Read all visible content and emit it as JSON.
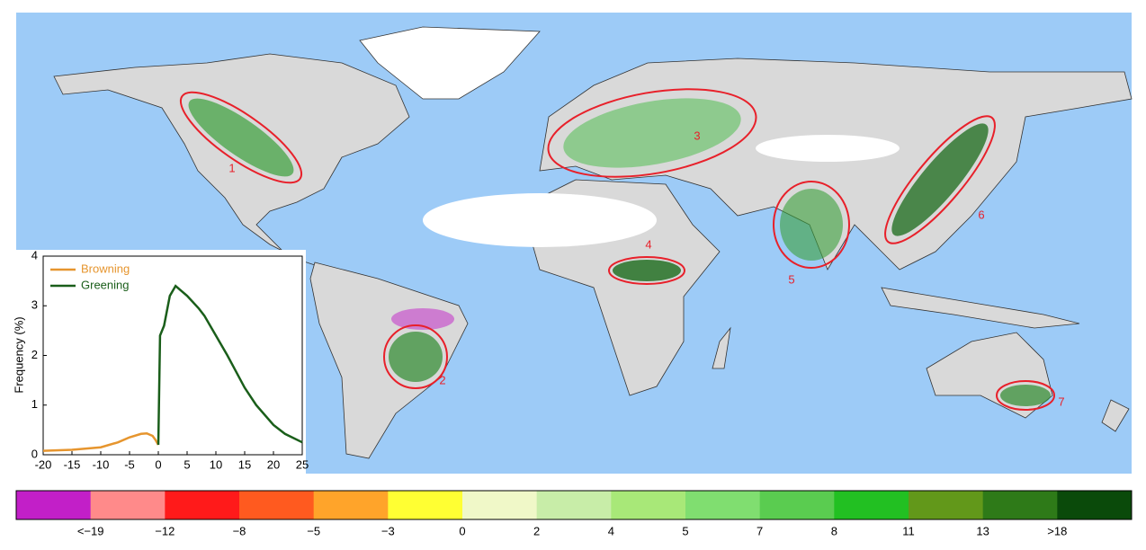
{
  "map": {
    "regions": [
      {
        "label": "1"
      },
      {
        "label": "2"
      },
      {
        "label": "3"
      },
      {
        "label": "4"
      },
      {
        "label": "5"
      },
      {
        "label": "6"
      },
      {
        "label": "7"
      }
    ]
  },
  "chart_data": {
    "type": "line",
    "ylabel": "Frequency (%)",
    "xlim": [
      -20,
      25
    ],
    "ylim": [
      0,
      4
    ],
    "xticks": [
      -20,
      -15,
      -10,
      -5,
      0,
      5,
      10,
      15,
      20,
      25
    ],
    "yticks": [
      0,
      1,
      2,
      3,
      4
    ],
    "legend": "upper left",
    "series": [
      {
        "name": "Browning",
        "color": "#e6952e",
        "x": [
          -20,
          -15,
          -10,
          -7,
          -5,
          -3,
          -2,
          -1,
          -0.5,
          0
        ],
        "values": [
          0.08,
          0.1,
          0.15,
          0.25,
          0.35,
          0.42,
          0.43,
          0.38,
          0.3,
          0.2
        ]
      },
      {
        "name": "Greening",
        "color": "#1a5e1a",
        "x": [
          0,
          0.3,
          1,
          2,
          3,
          4,
          5,
          7,
          8,
          10,
          12,
          15,
          17,
          20,
          22,
          25
        ],
        "values": [
          0.2,
          2.4,
          2.6,
          3.2,
          3.4,
          3.3,
          3.2,
          2.95,
          2.8,
          2.4,
          2.0,
          1.35,
          1.0,
          0.6,
          0.42,
          0.25
        ]
      }
    ]
  },
  "colorbar": {
    "colors": [
      "#c21fc8",
      "#ff8a8a",
      "#ff1a1a",
      "#ff5a1f",
      "#ffa42a",
      "#ffff33",
      "#f0f8c8",
      "#c8eda8",
      "#a8e878",
      "#80de70",
      "#5acc50",
      "#22c022",
      "#62981a",
      "#2e7a18",
      "#0a4a0a"
    ],
    "labels": [
      "<−19",
      "−12",
      "−8",
      "−5",
      "−3",
      "0",
      "2",
      "4",
      "5",
      "7",
      "8",
      "11",
      "13",
      ">18"
    ]
  }
}
